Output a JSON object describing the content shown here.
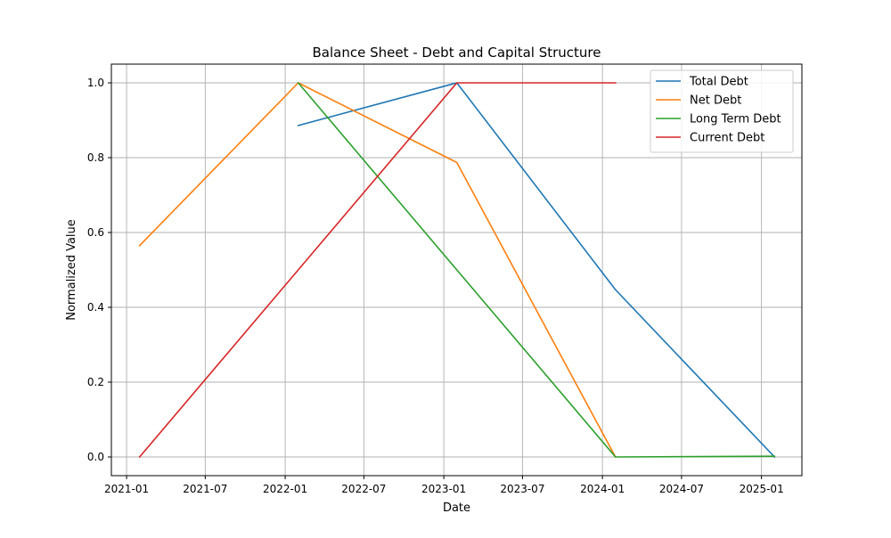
{
  "chart_data": {
    "type": "line",
    "title": "Balance Sheet - Debt and Capital Structure",
    "xlabel": "Date",
    "ylabel": "Normalized Value",
    "x_type": "date",
    "xlim": [
      "2020-11-27",
      "2025-04-04"
    ],
    "ylim": [
      -0.05,
      1.05
    ],
    "x_ticks": [
      {
        "date": "2021-01-01",
        "label": "2021-01"
      },
      {
        "date": "2021-07-01",
        "label": "2021-07"
      },
      {
        "date": "2022-01-01",
        "label": "2022-01"
      },
      {
        "date": "2022-07-01",
        "label": "2022-07"
      },
      {
        "date": "2023-01-01",
        "label": "2023-01"
      },
      {
        "date": "2023-07-01",
        "label": "2023-07"
      },
      {
        "date": "2024-01-01",
        "label": "2024-01"
      },
      {
        "date": "2024-07-01",
        "label": "2024-07"
      },
      {
        "date": "2025-01-01",
        "label": "2025-01"
      }
    ],
    "y_ticks": [
      {
        "value": 0.0,
        "label": "0.0"
      },
      {
        "value": 0.2,
        "label": "0.2"
      },
      {
        "value": 0.4,
        "label": "0.4"
      },
      {
        "value": 0.6,
        "label": "0.6"
      },
      {
        "value": 0.8,
        "label": "0.8"
      },
      {
        "value": 1.0,
        "label": "1.0"
      }
    ],
    "grid": true,
    "legend_position": "top-right",
    "series": [
      {
        "name": "Total Debt",
        "color": "#1f77b4",
        "points": [
          {
            "x": "2022-01-31",
            "y": 0.886
          },
          {
            "x": "2023-01-31",
            "y": 1.0
          },
          {
            "x": "2024-01-31",
            "y": 0.447
          },
          {
            "x": "2025-01-31",
            "y": 0.0
          }
        ]
      },
      {
        "name": "Net Debt",
        "color": "#ff7f0e",
        "points": [
          {
            "x": "2021-01-31",
            "y": 0.565
          },
          {
            "x": "2022-01-31",
            "y": 1.0
          },
          {
            "x": "2023-01-31",
            "y": 0.787
          },
          {
            "x": "2024-01-31",
            "y": 0.0
          }
        ]
      },
      {
        "name": "Long Term Debt",
        "color": "#2ca02c",
        "points": [
          {
            "x": "2022-01-31",
            "y": 1.0
          },
          {
            "x": "2023-01-31",
            "y": 0.5
          },
          {
            "x": "2024-01-31",
            "y": 0.0
          },
          {
            "x": "2025-01-31",
            "y": 0.002
          }
        ]
      },
      {
        "name": "Current Debt",
        "color": "#d62728",
        "points": [
          {
            "x": "2021-01-31",
            "y": 0.0
          },
          {
            "x": "2022-01-31",
            "y": 0.5
          },
          {
            "x": "2023-01-31",
            "y": 1.0
          },
          {
            "x": "2024-01-31",
            "y": 1.0
          }
        ]
      }
    ]
  }
}
